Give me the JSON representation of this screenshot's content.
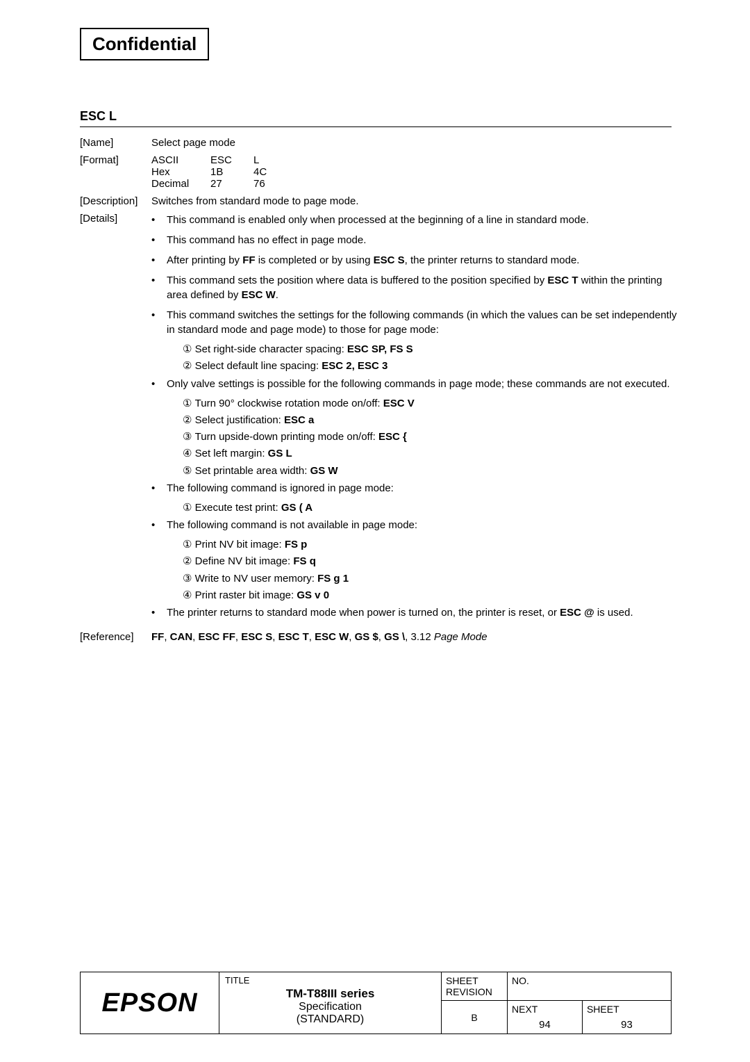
{
  "confidential": "Confidential",
  "commandTitle": "ESC L",
  "name": {
    "label": "[Name]",
    "value": "Select page mode"
  },
  "format": {
    "label": "[Format]",
    "rows": [
      {
        "c1": "ASCII",
        "c2": "ESC",
        "c3": "L"
      },
      {
        "c1": "Hex",
        "c2": "1B",
        "c3": "4C"
      },
      {
        "c1": "Decimal",
        "c2": "27",
        "c3": "76"
      }
    ]
  },
  "description": {
    "label": "[Description]",
    "value": "Switches from standard mode to page mode."
  },
  "details": {
    "label": "[Details]",
    "bullets": [
      {
        "text": "This command is enabled only when processed at the beginning of a line in standard mode."
      },
      {
        "text": "This command has no effect in page mode."
      },
      {
        "parts": [
          {
            "t": "After printing by "
          },
          {
            "t": "FF",
            "b": true
          },
          {
            "t": " is completed or by using "
          },
          {
            "t": "ESC S",
            "b": true
          },
          {
            "t": ", the printer returns to standard mode."
          }
        ]
      },
      {
        "parts": [
          {
            "t": "This command sets the position where data is buffered to the position specified by "
          },
          {
            "t": "ESC T",
            "b": true
          },
          {
            "t": " within the printing area defined by "
          },
          {
            "t": "ESC W",
            "b": true
          },
          {
            "t": "."
          }
        ]
      },
      {
        "text": "This command switches the settings for the following commands (in which the values can be set independently in standard mode and page mode) to those for page mode:",
        "subs": [
          {
            "num": "①",
            "parts": [
              {
                "t": "Set right-side character spacing:   "
              },
              {
                "t": "ESC SP, FS S",
                "b": true
              }
            ]
          },
          {
            "num": "②",
            "parts": [
              {
                "t": "Select default line spacing:   "
              },
              {
                "t": "ESC 2, ESC 3",
                "b": true
              }
            ]
          }
        ]
      },
      {
        "text": "Only valve settings is possible for the following commands in page mode; these commands are not executed.",
        "subs": [
          {
            "num": "①",
            "parts": [
              {
                "t": "Turn 90° clockwise rotation mode on/off:   "
              },
              {
                "t": "ESC V",
                "b": true
              }
            ]
          },
          {
            "num": "②",
            "parts": [
              {
                "t": "Select justification:   "
              },
              {
                "t": "ESC a",
                "b": true
              }
            ]
          },
          {
            "num": "③",
            "parts": [
              {
                "t": "Turn upside-down printing mode on/off:   "
              },
              {
                "t": "ESC {",
                "b": true
              }
            ]
          },
          {
            "num": "④",
            "parts": [
              {
                "t": "Set left margin:   "
              },
              {
                "t": "GS L",
                "b": true
              }
            ]
          },
          {
            "num": "⑤",
            "parts": [
              {
                "t": "Set printable area width:   "
              },
              {
                "t": "GS W",
                "b": true
              }
            ]
          }
        ]
      },
      {
        "text": "The following command is ignored in page mode:",
        "subs": [
          {
            "num": "①",
            "parts": [
              {
                "t": "Execute test print:   "
              },
              {
                "t": "GS ( A",
                "b": true
              }
            ]
          }
        ]
      },
      {
        "text": "The following command is not available in page mode:",
        "subs": [
          {
            "num": "①",
            "parts": [
              {
                "t": "Print NV bit image:   "
              },
              {
                "t": "FS p",
                "b": true
              }
            ]
          },
          {
            "num": "②",
            "parts": [
              {
                "t": "Define NV bit image:   "
              },
              {
                "t": "FS q",
                "b": true
              }
            ]
          },
          {
            "num": "③",
            "parts": [
              {
                "t": "Write to NV user memory:   "
              },
              {
                "t": "FS g 1",
                "b": true
              }
            ]
          },
          {
            "num": "④",
            "parts": [
              {
                "t": "Print raster bit image:   "
              },
              {
                "t": "GS v 0",
                "b": true
              }
            ]
          }
        ]
      },
      {
        "parts": [
          {
            "t": "The printer returns to standard mode when power is turned on, the printer is reset, or "
          },
          {
            "t": "ESC @",
            "b": true
          },
          {
            "t": " is used."
          }
        ]
      }
    ]
  },
  "reference": {
    "label": "[Reference]",
    "parts": [
      {
        "t": "FF",
        "b": true
      },
      {
        "t": ", "
      },
      {
        "t": "CAN",
        "b": true
      },
      {
        "t": ", "
      },
      {
        "t": "ESC FF",
        "b": true
      },
      {
        "t": ", "
      },
      {
        "t": "ESC S",
        "b": true
      },
      {
        "t": ", "
      },
      {
        "t": "ESC T",
        "b": true
      },
      {
        "t": ", "
      },
      {
        "t": "ESC W",
        "b": true
      },
      {
        "t": ", "
      },
      {
        "t": "GS $",
        "b": true
      },
      {
        "t": ", "
      },
      {
        "t": "GS \\",
        "b": true
      },
      {
        "t": ", 3.12 "
      },
      {
        "t": "Page Mode",
        "i": true
      }
    ]
  },
  "footer": {
    "epson": "EPSON",
    "titleLabel": "TITLE",
    "titleMain": "TM-T88III series",
    "titleSub1": "Specification",
    "titleSub2": "(STANDARD)",
    "sheetRev1": "SHEET",
    "sheetRev2": "REVISION",
    "no": "NO.",
    "revB": "B",
    "next": "NEXT",
    "nextVal": "94",
    "sheet": "SHEET",
    "sheetVal": "93"
  }
}
